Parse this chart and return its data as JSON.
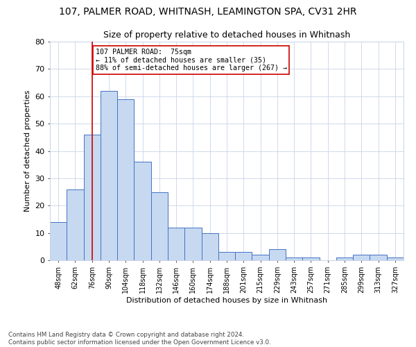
{
  "title": "107, PALMER ROAD, WHITNASH, LEAMINGTON SPA, CV31 2HR",
  "subtitle": "Size of property relative to detached houses in Whitnash",
  "xlabel": "Distribution of detached houses by size in Whitnash",
  "ylabel": "Number of detached properties",
  "bar_values": [
    14,
    26,
    46,
    62,
    59,
    36,
    25,
    12,
    12,
    10,
    3,
    3,
    2,
    4,
    1,
    1,
    0,
    1,
    2,
    2,
    1
  ],
  "bar_labels": [
    "48sqm",
    "62sqm",
    "76sqm",
    "90sqm",
    "104sqm",
    "118sqm",
    "132sqm",
    "146sqm",
    "160sqm",
    "174sqm",
    "188sqm",
    "201sqm",
    "215sqm",
    "229sqm",
    "243sqm",
    "257sqm",
    "271sqm",
    "285sqm",
    "299sqm",
    "313sqm",
    "327sqm"
  ],
  "bar_color": "#c6d9f0",
  "bar_edge_color": "#4472c4",
  "ylim": [
    0,
    80
  ],
  "yticks": [
    0,
    10,
    20,
    30,
    40,
    50,
    60,
    70,
    80
  ],
  "property_bin_index": 2,
  "vline_color": "#cc0000",
  "annotation_text": "107 PALMER ROAD:  75sqm\n← 11% of detached houses are smaller (35)\n88% of semi-detached houses are larger (267) →",
  "annotation_box_color": "#cc0000",
  "footnote": "Contains HM Land Registry data © Crown copyright and database right 2024.\nContains public sector information licensed under the Open Government Licence v3.0.",
  "background_color": "#ffffff",
  "grid_color": "#c8d4e8",
  "title_fontsize": 10,
  "subtitle_fontsize": 9
}
